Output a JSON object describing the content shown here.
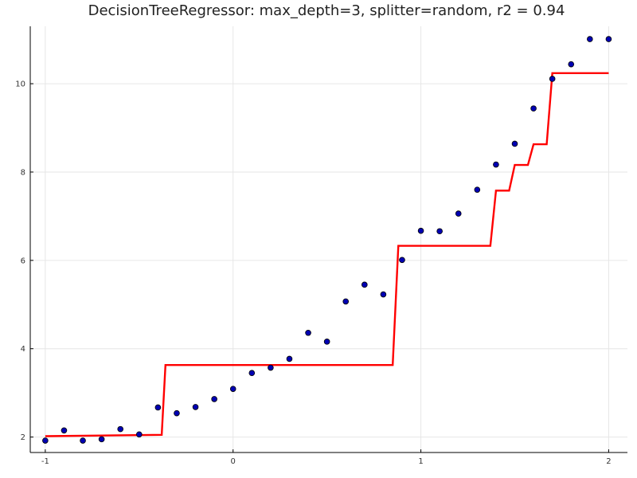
{
  "chart_data": {
    "type": "line",
    "title": "DecisionTreeRegressor: max_depth=3, splitter=random, r2 = 0.94",
    "xlabel": "",
    "ylabel": "",
    "xlim": [
      -1.08,
      2.1
    ],
    "ylim": [
      1.65,
      11.3
    ],
    "x_ticks": [
      -1,
      0,
      1,
      2
    ],
    "x_tick_labels": [
      "-1",
      "0",
      "1",
      "2"
    ],
    "y_ticks": [
      2,
      4,
      6,
      8,
      10
    ],
    "y_tick_labels": [
      "2",
      "4",
      "6",
      "8",
      "10"
    ],
    "grid": true,
    "legend": "none",
    "series": [
      {
        "type": "scatter",
        "color": "#0000b3",
        "x": [
          -1.0,
          -0.9,
          -0.8,
          -0.7,
          -0.6,
          -0.5,
          -0.4,
          -0.3,
          -0.2,
          -0.1,
          0.0,
          0.1,
          0.2,
          0.3,
          0.4,
          0.5,
          0.6,
          0.7,
          0.8,
          0.9,
          1.0,
          1.1,
          1.2,
          1.3,
          1.4,
          1.5,
          1.6,
          1.7,
          1.8,
          1.9,
          2.0
        ],
        "y": [
          1.92,
          2.15,
          1.92,
          1.95,
          2.18,
          2.06,
          2.67,
          2.54,
          2.68,
          2.86,
          3.09,
          3.45,
          3.57,
          3.77,
          4.36,
          4.16,
          5.07,
          5.45,
          5.23,
          6.01,
          6.67,
          6.66,
          7.06,
          7.6,
          8.17,
          8.64,
          9.44,
          10.11,
          10.44,
          11.01,
          11.01
        ]
      },
      {
        "type": "step",
        "color": "#ff0000",
        "x": [
          -1.0,
          -0.38,
          -0.38,
          -0.36,
          -0.36,
          0.85,
          0.85,
          0.88,
          0.88,
          1.37,
          1.37,
          1.4,
          1.4,
          1.47,
          1.47,
          1.5,
          1.5,
          1.57,
          1.57,
          1.6,
          1.6,
          1.67,
          1.67,
          1.7,
          1.7,
          2.0
        ],
        "y": [
          2.02,
          2.05,
          2.05,
          3.63,
          3.63,
          3.63,
          3.63,
          6.33,
          6.33,
          6.33,
          6.33,
          7.58,
          7.58,
          7.58,
          7.58,
          8.16,
          8.16,
          8.16,
          8.16,
          8.63,
          8.63,
          8.63,
          8.63,
          10.24,
          10.24,
          10.24
        ]
      }
    ]
  }
}
